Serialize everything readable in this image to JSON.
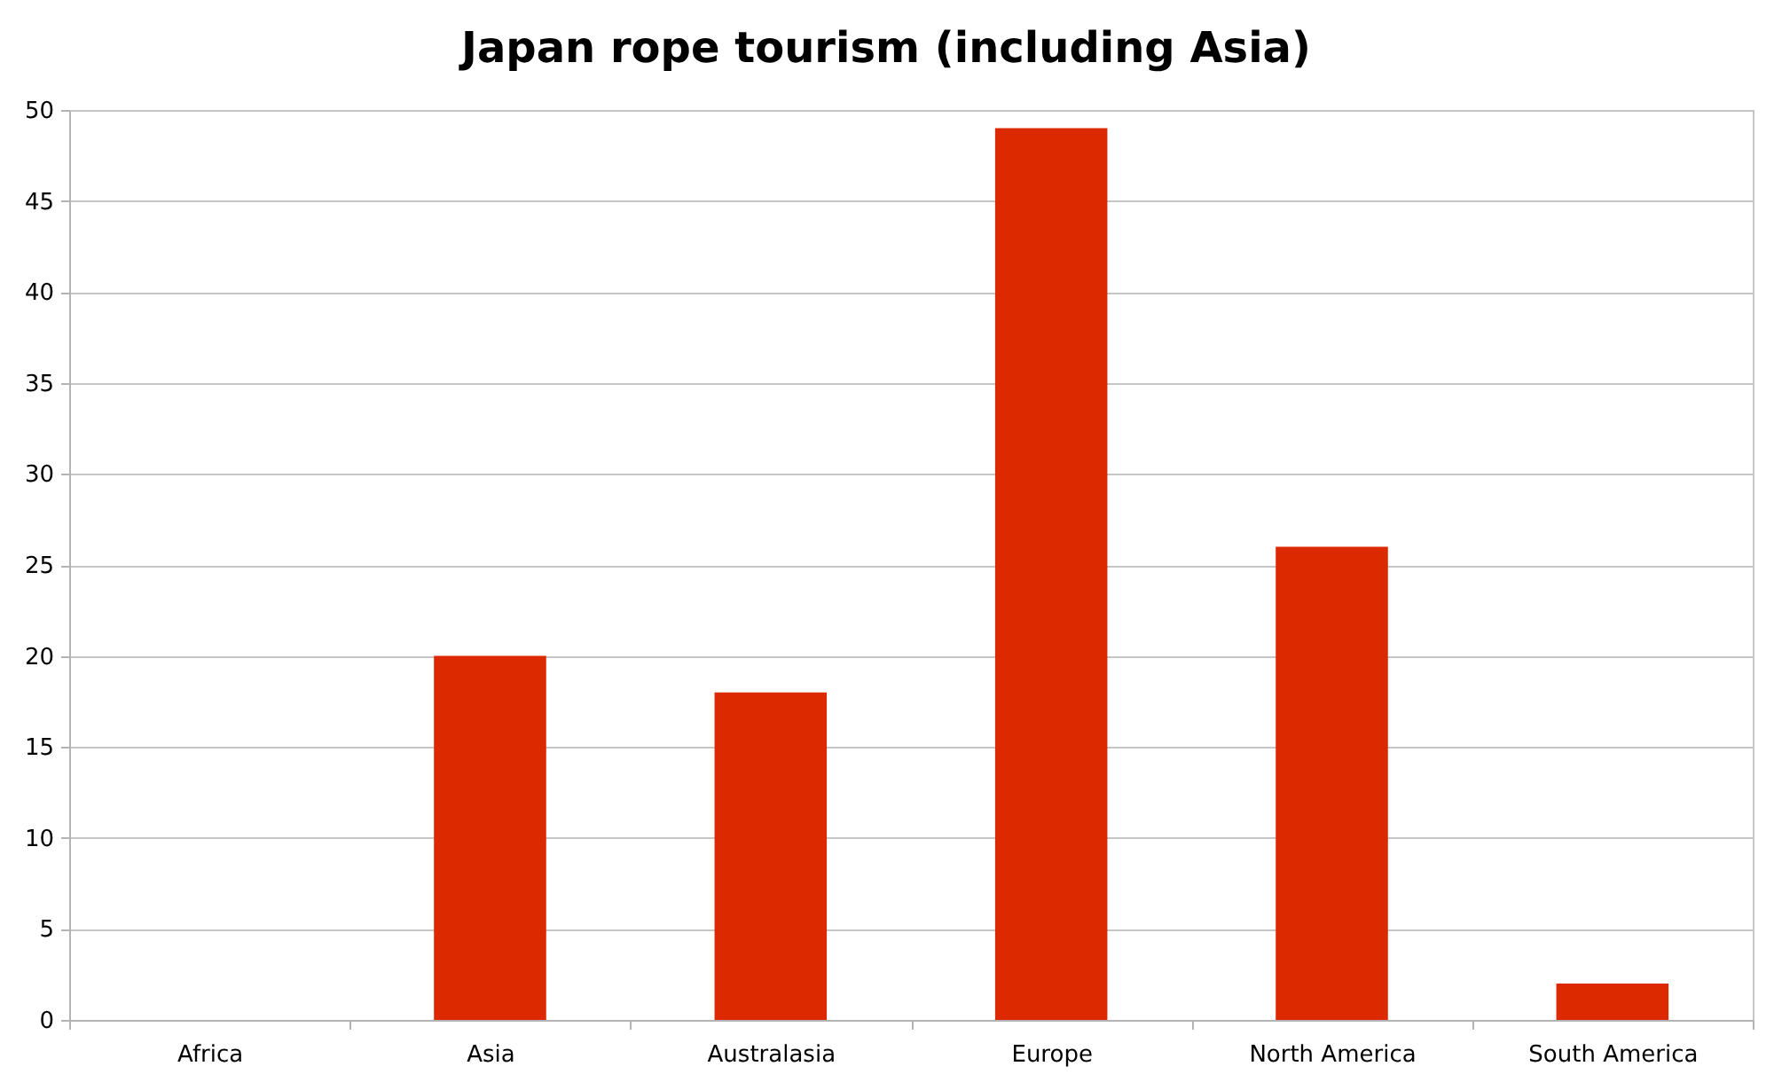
{
  "chart_data": {
    "type": "bar",
    "title": "Japan rope tourism (including Asia)",
    "categories": [
      "Africa",
      "Asia",
      "Australasia",
      "Europe",
      "North America",
      "South America"
    ],
    "values": [
      0,
      20,
      18,
      49,
      26,
      2
    ],
    "color": "#dc2900",
    "ylim": [
      0,
      50
    ],
    "yticks": [
      0,
      5,
      10,
      15,
      20,
      25,
      30,
      35,
      40,
      45,
      50
    ],
    "grid": "y"
  }
}
